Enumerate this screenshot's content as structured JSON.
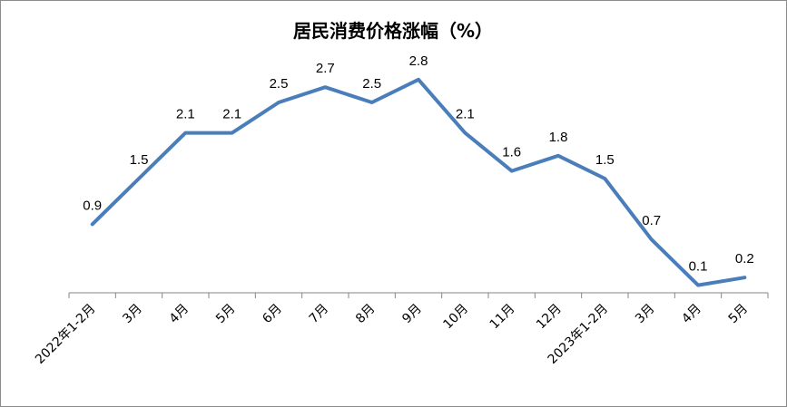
{
  "chart_data": {
    "type": "line",
    "title": "居民消费价格涨幅（%）",
    "categories": [
      "2022年1-2月",
      "3月",
      "4月",
      "5月",
      "6月",
      "7月",
      "8月",
      "9月",
      "10月",
      "11月",
      "12月",
      "2023年1-2月",
      "3月",
      "4月",
      "5月"
    ],
    "values": [
      0.9,
      1.5,
      2.1,
      2.1,
      2.5,
      2.7,
      2.5,
      2.8,
      2.1,
      1.6,
      1.8,
      1.5,
      0.7,
      0.1,
      0.2
    ],
    "value_labels": [
      "0.9",
      "1.5",
      "2.1",
      "2.1",
      "2.5",
      "2.7",
      "2.5",
      "2.8",
      "2.1",
      "1.6",
      "1.8",
      "1.5",
      "0.7",
      "0.1",
      "0.2"
    ],
    "xlabel": "",
    "ylabel": "",
    "ylim": [
      0,
      3
    ],
    "y_axis_visible": false,
    "grid": false,
    "legend": "none",
    "line_color": "#4a7ebb",
    "axis_color": "#868686"
  }
}
